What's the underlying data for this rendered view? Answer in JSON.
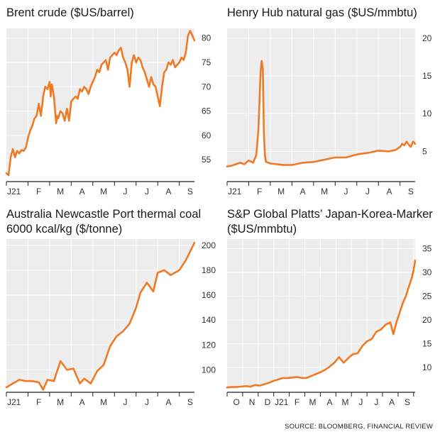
{
  "source": "SOURCE: BLOOMBERG, FINANCIAL REVIEW",
  "colors": {
    "line": "#f07a23",
    "plot_bg": "#ededed",
    "grid": "#ffffff",
    "axis": "#222222"
  },
  "chart_data": [
    {
      "type": "area",
      "title": "Brent crude ($US/barrel)",
      "xlabel": "",
      "ylabel": "",
      "ylim": [
        50.5,
        82
      ],
      "xlim": [
        0,
        8.7
      ],
      "yticks": [
        55,
        60,
        65,
        70,
        75,
        80
      ],
      "xticks": [
        {
          "label": "J21",
          "x": 0.35
        },
        {
          "label": "F",
          "x": 1.5
        },
        {
          "label": "M",
          "x": 2.5
        },
        {
          "label": "A",
          "x": 3.5
        },
        {
          "label": "M",
          "x": 4.5
        },
        {
          "label": "J",
          "x": 5.5
        },
        {
          "label": "J",
          "x": 6.5
        },
        {
          "label": "A",
          "x": 7.5
        },
        {
          "label": "S",
          "x": 8.5
        }
      ],
      "gridlines": [
        1,
        2,
        3,
        4,
        5,
        6,
        7,
        8
      ],
      "grid": true,
      "x": [
        0,
        0.1,
        0.2,
        0.3,
        0.4,
        0.5,
        0.6,
        0.7,
        0.8,
        0.9,
        1.0,
        1.1,
        1.2,
        1.3,
        1.4,
        1.5,
        1.6,
        1.7,
        1.8,
        1.9,
        2.0,
        2.05,
        2.1,
        2.2,
        2.3,
        2.35,
        2.4,
        2.5,
        2.6,
        2.7,
        2.8,
        2.9,
        3.0,
        3.1,
        3.2,
        3.3,
        3.4,
        3.5,
        3.6,
        3.7,
        3.8,
        3.9,
        4.0,
        4.1,
        4.2,
        4.3,
        4.4,
        4.5,
        4.6,
        4.7,
        4.8,
        4.9,
        5.0,
        5.1,
        5.2,
        5.3,
        5.4,
        5.5,
        5.6,
        5.7,
        5.8,
        5.9,
        6.0,
        6.1,
        6.2,
        6.3,
        6.4,
        6.5,
        6.6,
        6.7,
        6.8,
        6.9,
        7.0,
        7.1,
        7.2,
        7.3,
        7.4,
        7.5,
        7.6,
        7.7,
        7.8,
        7.9,
        8.0,
        8.1,
        8.2,
        8.3,
        8.4,
        8.5,
        8.6,
        8.7
      ],
      "y": [
        52.2,
        51.8,
        55.5,
        57.2,
        55.5,
        56.8,
        56.3,
        57.0,
        56.8,
        57.5,
        59.5,
        61.0,
        62.0,
        63.5,
        64.0,
        66.5,
        64.0,
        68.0,
        70.0,
        69.5,
        71.0,
        68.0,
        70.5,
        68.0,
        62.5,
        64.0,
        63.5,
        65.0,
        64.5,
        63.0,
        65.5,
        63.0,
        67.0,
        67.5,
        68.0,
        67.5,
        69.5,
        69.0,
        70.0,
        69.5,
        68.5,
        70.0,
        71.0,
        72.0,
        73.5,
        73.0,
        74.5,
        75.0,
        75.5,
        73.5,
        76.0,
        76.5,
        77.0,
        76.5,
        77.5,
        78.0,
        76.0,
        75.0,
        73.5,
        70.0,
        75.0,
        76.5,
        75.0,
        76.0,
        75.5,
        74.0,
        73.0,
        71.5,
        70.0,
        72.0,
        70.5,
        70.0,
        68.0,
        66.0,
        70.0,
        73.0,
        73.5,
        75.0,
        74.5,
        75.5,
        74.0,
        74.5,
        75.0,
        76.0,
        75.5,
        77.0,
        80.5,
        81.5,
        80.5,
        79.5
      ]
    },
    {
      "type": "area",
      "title": "Henry Hub natural gas ($US/mmbtu)",
      "xlabel": "",
      "ylabel": "",
      "ylim": [
        1,
        21.3
      ],
      "xlim": [
        0,
        8.7
      ],
      "yticks": [
        5,
        10,
        15,
        20
      ],
      "xticks": [
        {
          "label": "J21",
          "x": 0.35
        },
        {
          "label": "F",
          "x": 1.5
        },
        {
          "label": "M",
          "x": 2.5
        },
        {
          "label": "A",
          "x": 3.5
        },
        {
          "label": "M",
          "x": 4.5
        },
        {
          "label": "J",
          "x": 5.5
        },
        {
          "label": "J",
          "x": 6.5
        },
        {
          "label": "A",
          "x": 7.5
        },
        {
          "label": "S",
          "x": 8.5
        }
      ],
      "gridlines": [
        1,
        2,
        3,
        4,
        5,
        6,
        7,
        8
      ],
      "grid": true,
      "x": [
        0,
        0.2,
        0.4,
        0.6,
        0.8,
        1.0,
        1.2,
        1.35,
        1.45,
        1.55,
        1.6,
        1.65,
        1.7,
        1.75,
        1.8,
        1.9,
        2.0,
        2.3,
        2.6,
        3.0,
        3.5,
        4.0,
        4.5,
        5.0,
        5.5,
        6.0,
        6.5,
        7.0,
        7.5,
        7.8,
        8.0,
        8.1,
        8.2,
        8.3,
        8.4,
        8.5,
        8.6,
        8.7
      ],
      "y": [
        3.0,
        3.1,
        3.3,
        3.5,
        3.3,
        3.8,
        3.5,
        4.5,
        8.0,
        15.5,
        17.0,
        16.0,
        7.5,
        4.5,
        3.6,
        3.5,
        3.4,
        3.3,
        3.2,
        3.2,
        3.5,
        3.6,
        3.9,
        4.2,
        4.2,
        4.6,
        4.8,
        5.1,
        5.0,
        5.2,
        5.6,
        6.0,
        5.8,
        6.3,
        5.9,
        5.6,
        6.3,
        6.0
      ]
    },
    {
      "type": "area",
      "title": "Australia Newcastle Port thermal coal 6000 kcal/kg ($/tonne)",
      "xlabel": "",
      "ylabel": "",
      "ylim": [
        82,
        205
      ],
      "xlim": [
        0,
        8.7
      ],
      "yticks": [
        100,
        120,
        140,
        160,
        180,
        200
      ],
      "xticks": [
        {
          "label": "J21",
          "x": 0.35
        },
        {
          "label": "F",
          "x": 1.5
        },
        {
          "label": "M",
          "x": 2.5
        },
        {
          "label": "A",
          "x": 3.5
        },
        {
          "label": "M",
          "x": 4.5
        },
        {
          "label": "J",
          "x": 5.5
        },
        {
          "label": "J",
          "x": 6.5
        },
        {
          "label": "A",
          "x": 7.5
        },
        {
          "label": "S",
          "x": 8.5
        }
      ],
      "gridlines": [
        1,
        2,
        3,
        4,
        5,
        6,
        7,
        8
      ],
      "grid": true,
      "x": [
        0,
        0.3,
        0.6,
        0.9,
        1.2,
        1.5,
        1.7,
        1.9,
        2.2,
        2.5,
        2.8,
        3.1,
        3.4,
        3.6,
        3.9,
        4.2,
        4.5,
        4.8,
        5.1,
        5.4,
        5.7,
        6.0,
        6.2,
        6.5,
        6.8,
        7.0,
        7.3,
        7.6,
        8.0,
        8.3,
        8.7
      ],
      "y": [
        86,
        89,
        92,
        91,
        91,
        90,
        84,
        92,
        91,
        107,
        100,
        101,
        89,
        93,
        89,
        99,
        104,
        119,
        127,
        131,
        137,
        150,
        162,
        170,
        163,
        178,
        180,
        176,
        180,
        188,
        202
      ]
    },
    {
      "type": "area",
      "title": "S&P Global Platts’ Japan-Korea-Marker ($US/mmbtu)",
      "xlabel": "",
      "ylabel": "",
      "ylim": [
        4.8,
        37
      ],
      "xlim": [
        0,
        12.1
      ],
      "yticks": [
        10,
        15,
        20,
        25,
        30,
        35
      ],
      "xticks": [
        {
          "label": "O",
          "x": 0.6
        },
        {
          "label": "N",
          "x": 1.6
        },
        {
          "label": "D",
          "x": 2.6
        },
        {
          "label": "J21",
          "x": 3.5
        },
        {
          "label": "F",
          "x": 4.5
        },
        {
          "label": "M",
          "x": 5.5
        },
        {
          "label": "A",
          "x": 6.6
        },
        {
          "label": "M",
          "x": 7.6
        },
        {
          "label": "J",
          "x": 8.6
        },
        {
          "label": "J",
          "x": 9.6
        },
        {
          "label": "A",
          "x": 10.6
        },
        {
          "label": "S",
          "x": 11.6
        }
      ],
      "gridlines": [
        1,
        2,
        3,
        4,
        5,
        6,
        7,
        8,
        9,
        10,
        11,
        12
      ],
      "grid": true,
      "x": [
        0,
        0.3,
        0.6,
        0.9,
        1.2,
        1.5,
        1.8,
        2.1,
        2.4,
        2.7,
        3.0,
        3.3,
        3.6,
        3.9,
        4.2,
        4.5,
        4.8,
        5.1,
        5.4,
        5.7,
        6.0,
        6.3,
        6.6,
        6.9,
        7.2,
        7.5,
        7.8,
        8.1,
        8.4,
        8.7,
        9.0,
        9.3,
        9.6,
        9.9,
        10.2,
        10.5,
        10.7,
        10.9,
        11.1,
        11.3,
        11.5,
        11.7,
        11.9,
        12.0,
        12.1
      ],
      "y": [
        5.8,
        5.9,
        5.9,
        6.0,
        6.1,
        6.0,
        6.3,
        6.2,
        6.5,
        6.8,
        7.2,
        7.5,
        7.8,
        7.8,
        7.9,
        8.0,
        7.8,
        7.8,
        8.2,
        8.6,
        9.0,
        9.5,
        10.2,
        11.0,
        12.2,
        11.0,
        12.0,
        12.8,
        13.0,
        14.5,
        15.5,
        16.0,
        17.5,
        18.0,
        19.0,
        19.5,
        17.0,
        19.5,
        21.5,
        23.5,
        25.0,
        27.0,
        29.0,
        30.5,
        32.5
      ]
    }
  ]
}
